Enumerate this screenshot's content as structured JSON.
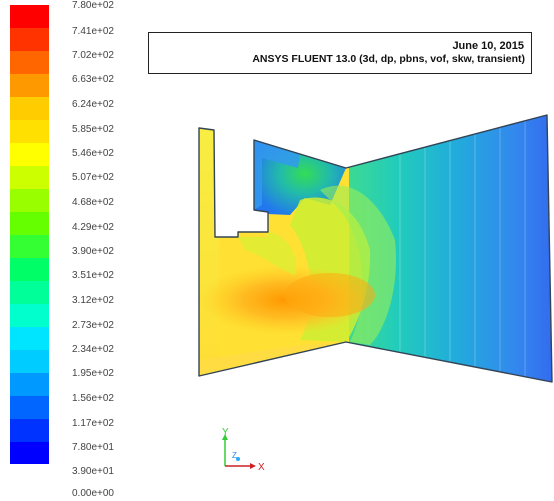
{
  "header": {
    "date": "June 10, 2015",
    "solver": "ANSYS FLUENT 13.0 (3d, dp, pbns, vof, skw, transient)"
  },
  "legend": {
    "labels": [
      "7.80e+02",
      "7.41e+02",
      "7.02e+02",
      "6.63e+02",
      "6.24e+02",
      "5.85e+02",
      "5.46e+02",
      "5.07e+02",
      "4.68e+02",
      "4.29e+02",
      "3.90e+02",
      "3.51e+02",
      "3.12e+02",
      "2.73e+02",
      "2.34e+02",
      "1.95e+02",
      "1.56e+02",
      "1.17e+02",
      "7.80e+01",
      "3.90e+01",
      "0.00e+00"
    ],
    "colors": [
      "#ff0000",
      "#ff3300",
      "#ff6600",
      "#ff9900",
      "#ffcc00",
      "#ffe000",
      "#ffff00",
      "#ccff00",
      "#99ff00",
      "#66ff00",
      "#33ff33",
      "#00ff66",
      "#00ff99",
      "#00ffcc",
      "#00e5ff",
      "#00ccff",
      "#0099ff",
      "#0066ff",
      "#0033ff",
      "#0000ff"
    ]
  },
  "contour": {
    "min": 0.0,
    "max": 780.0
  },
  "axes": {
    "x_label": "X",
    "y_label": "Y",
    "z_label": "Z"
  }
}
